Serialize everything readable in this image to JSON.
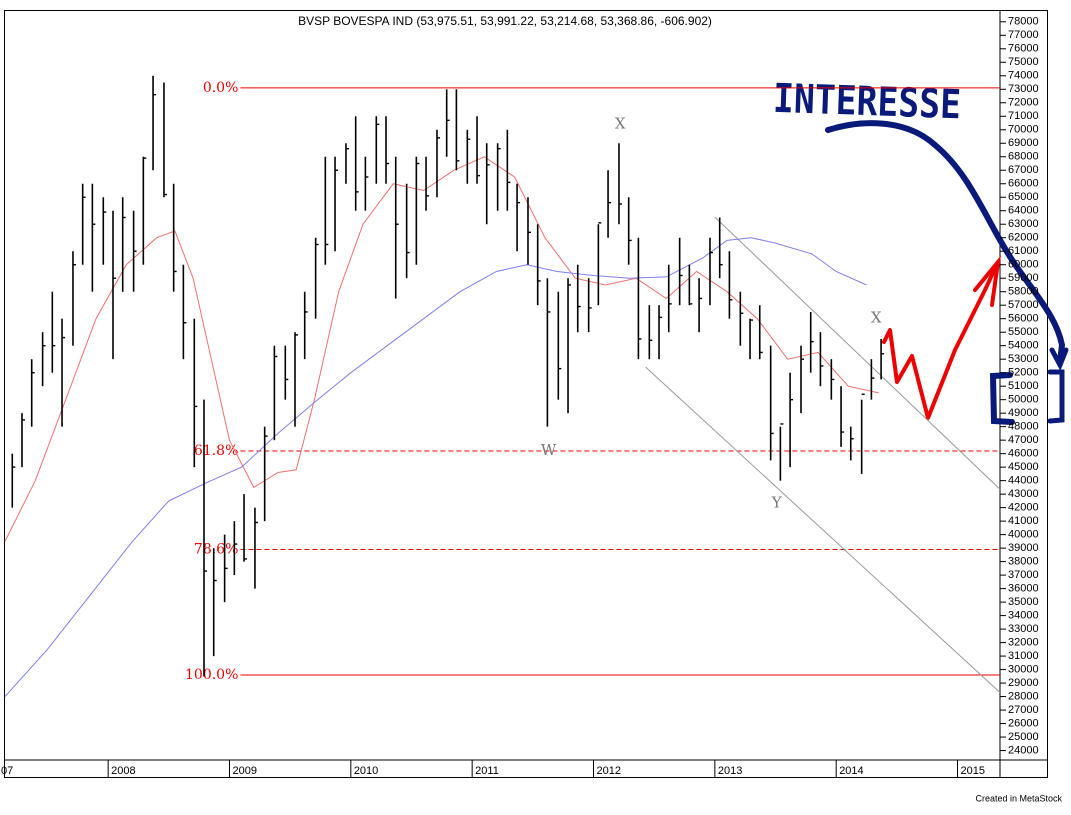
{
  "chart_data": {
    "type": "ohlc",
    "title": "BVSP BOVESPA IND (53,975.51, 53,991.22, 53,214.68, 53,368.86, -606.902)",
    "footer": "Created in MetaStock",
    "handwritten_note": "INTERESSE",
    "x_edge_label": "07",
    "xlim": [
      2007.15,
      2015.35
    ],
    "xticks": [
      2008,
      2009,
      2010,
      2011,
      2012,
      2013,
      2014,
      2015
    ],
    "ylim": [
      23300,
      78800
    ],
    "yticks": [
      24000,
      25000,
      26000,
      27000,
      28000,
      29000,
      30000,
      31000,
      32000,
      33000,
      34000,
      35000,
      36000,
      37000,
      38000,
      39000,
      40000,
      41000,
      42000,
      43000,
      44000,
      45000,
      46000,
      47000,
      48000,
      49000,
      50000,
      51000,
      52000,
      53000,
      54000,
      55000,
      56000,
      57000,
      58000,
      59000,
      60000,
      61000,
      62000,
      63000,
      64000,
      65000,
      66000,
      67000,
      68000,
      69000,
      70000,
      71000,
      72000,
      73000,
      74000,
      75000,
      76000,
      77000,
      78000
    ],
    "bar_color": "#000000",
    "x": [
      2007.21,
      2007.29,
      2007.37,
      2007.46,
      2007.54,
      2007.62,
      2007.71,
      2007.79,
      2007.87,
      2007.96,
      2008.04,
      2008.12,
      2008.21,
      2008.29,
      2008.37,
      2008.46,
      2008.54,
      2008.62,
      2008.71,
      2008.79,
      2008.87,
      2008.96,
      2009.04,
      2009.12,
      2009.21,
      2009.29,
      2009.37,
      2009.46,
      2009.54,
      2009.62,
      2009.71,
      2009.79,
      2009.87,
      2009.96,
      2010.04,
      2010.12,
      2010.21,
      2010.29,
      2010.37,
      2010.46,
      2010.54,
      2010.62,
      2010.71,
      2010.79,
      2010.87,
      2010.96,
      2011.04,
      2011.12,
      2011.21,
      2011.29,
      2011.37,
      2011.46,
      2011.54,
      2011.62,
      2011.71,
      2011.79,
      2011.87,
      2011.96,
      2012.04,
      2012.12,
      2012.21,
      2012.29,
      2012.37,
      2012.46,
      2012.54,
      2012.62,
      2012.71,
      2012.79,
      2012.87,
      2012.96,
      2013.04,
      2013.12,
      2013.21,
      2013.29,
      2013.37,
      2013.46,
      2013.54,
      2013.62,
      2013.71,
      2013.79,
      2013.87,
      2013.96,
      2014.04,
      2014.12,
      2014.21,
      2014.29,
      2014.37
    ],
    "high": [
      46000,
      49000,
      53000,
      55000,
      58000,
      56000,
      61000,
      66000,
      66000,
      65000,
      64000,
      65000,
      64000,
      68000,
      74000,
      73500,
      66000,
      60000,
      56000,
      50000,
      39000,
      40000,
      41000,
      43000,
      42000,
      48000,
      54000,
      54000,
      55000,
      58000,
      62000,
      68000,
      68000,
      69000,
      71000,
      68000,
      71000,
      71000,
      68000,
      66000,
      68000,
      68000,
      70000,
      73000,
      73000,
      70000,
      71000,
      69000,
      69000,
      70000,
      66000,
      65000,
      63000,
      59000,
      58000,
      59000,
      60000,
      59000,
      63000,
      67000,
      69000,
      65000,
      62000,
      57000,
      57000,
      60000,
      62000,
      60000,
      59000,
      62000,
      63500,
      61000,
      58000,
      56000,
      57000,
      54000,
      48000,
      52000,
      54000,
      56500,
      55000,
      53000,
      51000,
      48000,
      50000,
      53000,
      54500
    ],
    "low": [
      42000,
      45000,
      48000,
      51000,
      52000,
      48000,
      54000,
      60000,
      58000,
      60000,
      53000,
      58000,
      58000,
      60000,
      67000,
      65000,
      58000,
      53000,
      45000,
      29500,
      31000,
      35000,
      37000,
      38000,
      36000,
      41000,
      47000,
      50000,
      48000,
      53000,
      56000,
      60000,
      61000,
      66000,
      64000,
      64000,
      66000,
      66000,
      57500,
      59000,
      60000,
      64000,
      65000,
      68000,
      67000,
      66000,
      66000,
      63000,
      64000,
      64000,
      61000,
      60000,
      57000,
      48000,
      50000,
      49000,
      55000,
      55000,
      57000,
      62000,
      63000,
      60000,
      53000,
      53000,
      53000,
      55000,
      57000,
      57000,
      55000,
      57000,
      59000,
      56000,
      54000,
      53000,
      53000,
      45500,
      44000,
      45000,
      49000,
      52000,
      51000,
      50000,
      46500,
      45500,
      44500,
      50000,
      51500
    ],
    "close": [
      45000,
      48500,
      52000,
      54000,
      54000,
      54600,
      60000,
      65000,
      63000,
      63900,
      59000,
      63500,
      61000,
      67900,
      72600,
      65200,
      59500,
      55700,
      49500,
      37300,
      36600,
      37500,
      39300,
      38200,
      40900,
      47300,
      53200,
      51500,
      54800,
      56500,
      61500,
      61500,
      67000,
      68600,
      65400,
      66500,
      70400,
      67500,
      63000,
      60900,
      67500,
      65100,
      69400,
      70700,
      67700,
      69300,
      66600,
      67400,
      68600,
      66100,
      64600,
      62400,
      58800,
      56500,
      52300,
      58500,
      56900,
      56800,
      63100,
      64600,
      64500,
      61800,
      54500,
      54400,
      56100,
      57100,
      59200,
      57100,
      57500,
      60900,
      60000,
      57400,
      56400,
      55900,
      53500,
      47500,
      48200,
      50000,
      53000,
      54300,
      52500,
      51500,
      47600,
      47100,
      50400,
      51600,
      53400
    ],
    "series": [
      {
        "color": "#f07070",
        "x": [
          2007.15,
          2007.4,
          2007.65,
          2007.9,
          2008.15,
          2008.4,
          2008.55,
          2008.7,
          2008.85,
          2009.0,
          2009.2,
          2009.4,
          2009.55,
          2009.7,
          2009.9,
          2010.1,
          2010.35,
          2010.6,
          2010.85,
          2011.1,
          2011.35,
          2011.6,
          2011.85,
          2012.1,
          2012.35,
          2012.6,
          2012.85,
          2013.1,
          2013.35,
          2013.6,
          2013.85,
          2014.1,
          2014.35
        ],
        "values": [
          39500,
          44000,
          50000,
          56000,
          60000,
          62000,
          62500,
          59000,
          53000,
          47000,
          43500,
          44600,
          44800,
          50000,
          58000,
          63000,
          66000,
          65500,
          67000,
          68000,
          66500,
          62000,
          59000,
          58500,
          59000,
          57500,
          59500,
          58000,
          56000,
          53000,
          53500,
          51000,
          50500
        ]
      },
      {
        "color": "#7f7ff0",
        "x": [
          2007.15,
          2007.5,
          2007.85,
          2008.2,
          2008.5,
          2008.8,
          2009.1,
          2009.4,
          2009.7,
          2010.0,
          2010.3,
          2010.6,
          2010.9,
          2011.2,
          2011.45,
          2011.7,
          2012.0,
          2012.3,
          2012.6,
          2012.9,
          2013.1,
          2013.3,
          2013.5,
          2013.8,
          2014.0,
          2014.25
        ],
        "values": [
          28000,
          31500,
          35500,
          39500,
          42500,
          43800,
          45000,
          47500,
          49800,
          52000,
          54000,
          56000,
          58000,
          59500,
          60000,
          59500,
          59200,
          59000,
          59100,
          60500,
          61800,
          62000,
          61600,
          60800,
          59500,
          58500
        ]
      }
    ],
    "fib": {
      "x_start": 2009.09,
      "color": "#ee0000",
      "levels": [
        {
          "label": "0.0%",
          "value": 73100,
          "dashed": false
        },
        {
          "label": "61.8%",
          "value": 46200,
          "dashed": true
        },
        {
          "label": "78.6%",
          "value": 38900,
          "dashed": true
        },
        {
          "label": "100.0%",
          "value": 29600,
          "dashed": false
        }
      ]
    },
    "trend_lines": [
      {
        "color": "#999999",
        "x": [
          2013.0,
          2015.35
        ],
        "values": [
          63530,
          43360
        ]
      },
      {
        "color": "#999999",
        "x": [
          2012.43,
          2015.35
        ],
        "values": [
          52410,
          28300
        ]
      }
    ],
    "annotations": [
      {
        "text": "X",
        "x": 2012.22,
        "value": 70400
      },
      {
        "text": "W",
        "x": 2011.63,
        "value": 46200
      },
      {
        "text": "Y",
        "x": 2013.51,
        "value": 42300
      },
      {
        "text": "X",
        "x": 2014.33,
        "value": 56000
      }
    ]
  }
}
